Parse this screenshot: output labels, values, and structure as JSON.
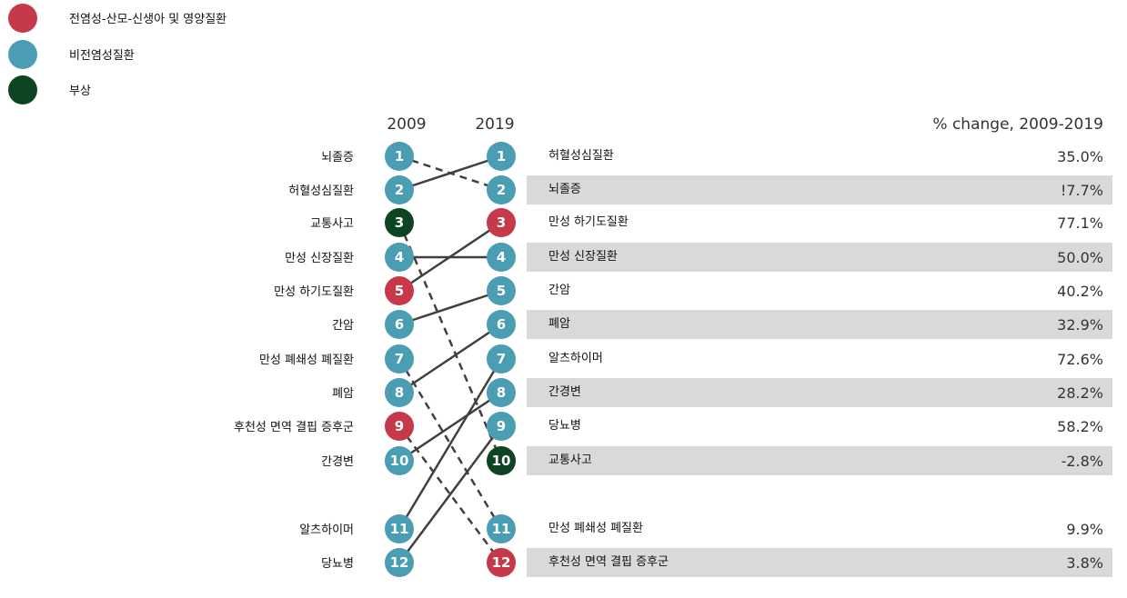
{
  "colors": {
    "communicable": "#c5394b",
    "noncommunicable": "#4a9db3",
    "injury": "#0d4422",
    "stripe": "#d9d9d9",
    "line": "#404040"
  },
  "legend": [
    {
      "label": "전염성-산모-신생아  및 영양질환",
      "category": "communicable"
    },
    {
      "label": "비전염성질환",
      "category": "noncommunicable"
    },
    {
      "label": "부상",
      "category": "injury"
    }
  ],
  "chart_data": {
    "type": "slope",
    "columns": [
      "2009",
      "2019"
    ],
    "change_header": "% change, 2009-2019",
    "left_2009": [
      {
        "rank": "1",
        "label": "뇌졸증",
        "category": "noncommunicable"
      },
      {
        "rank": "2",
        "label": "허혈성심질환",
        "category": "noncommunicable"
      },
      {
        "rank": "3",
        "label": "교통사고",
        "category": "injury"
      },
      {
        "rank": "4",
        "label": "만성 신장질환",
        "category": "noncommunicable"
      },
      {
        "rank": "5",
        "label": "만성 하기도질환",
        "category": "communicable"
      },
      {
        "rank": "6",
        "label": "간암",
        "category": "noncommunicable"
      },
      {
        "rank": "7",
        "label": "만성 폐쇄성 폐질환",
        "category": "noncommunicable"
      },
      {
        "rank": "8",
        "label": "폐암",
        "category": "noncommunicable"
      },
      {
        "rank": "9",
        "label": "후천성 면역 결핍 증후군",
        "category": "communicable"
      },
      {
        "rank": "10",
        "label": "간경변",
        "category": "noncommunicable"
      },
      {
        "rank": "11",
        "label": "알츠하이머",
        "category": "noncommunicable"
      },
      {
        "rank": "12",
        "label": "당뇨병",
        "category": "noncommunicable"
      }
    ],
    "right_2019": [
      {
        "rank": "1",
        "label": "허혈성심질환",
        "category": "noncommunicable",
        "change": "35.0%"
      },
      {
        "rank": "2",
        "label": "뇌졸증",
        "category": "noncommunicable",
        "change": "!7.7%"
      },
      {
        "rank": "3",
        "label": "만성 하기도질환",
        "category": "communicable",
        "change": "77.1%"
      },
      {
        "rank": "4",
        "label": "만성 신장질환",
        "category": "noncommunicable",
        "change": "50.0%"
      },
      {
        "rank": "5",
        "label": "간암",
        "category": "noncommunicable",
        "change": "40.2%"
      },
      {
        "rank": "6",
        "label": "폐암",
        "category": "noncommunicable",
        "change": "32.9%"
      },
      {
        "rank": "7",
        "label": "알츠하이머",
        "category": "noncommunicable",
        "change": "72.6%"
      },
      {
        "rank": "8",
        "label": "간경변",
        "category": "noncommunicable",
        "change": "28.2%"
      },
      {
        "rank": "9",
        "label": "당뇨병",
        "category": "noncommunicable",
        "change": "58.2%"
      },
      {
        "rank": "10",
        "label": "교통사고",
        "category": "injury",
        "change": "-2.8%"
      },
      {
        "rank": "11",
        "label": "만성 폐쇄성 폐질환",
        "category": "noncommunicable",
        "change": "9.9%"
      },
      {
        "rank": "12",
        "label": "후천성 면역 결핍 증후군",
        "category": "communicable",
        "change": "3.8%"
      }
    ],
    "connections": [
      {
        "from": 1,
        "to": 2,
        "style": "dashed"
      },
      {
        "from": 2,
        "to": 1,
        "style": "solid"
      },
      {
        "from": 3,
        "to": 10,
        "style": "dashed"
      },
      {
        "from": 4,
        "to": 4,
        "style": "solid"
      },
      {
        "from": 5,
        "to": 3,
        "style": "solid"
      },
      {
        "from": 6,
        "to": 5,
        "style": "solid"
      },
      {
        "from": 7,
        "to": 11,
        "style": "dashed"
      },
      {
        "from": 8,
        "to": 6,
        "style": "solid"
      },
      {
        "from": 9,
        "to": 12,
        "style": "dashed"
      },
      {
        "from": 10,
        "to": 8,
        "style": "solid"
      },
      {
        "from": 11,
        "to": 7,
        "style": "solid"
      },
      {
        "from": 12,
        "to": 9,
        "style": "solid"
      }
    ]
  }
}
